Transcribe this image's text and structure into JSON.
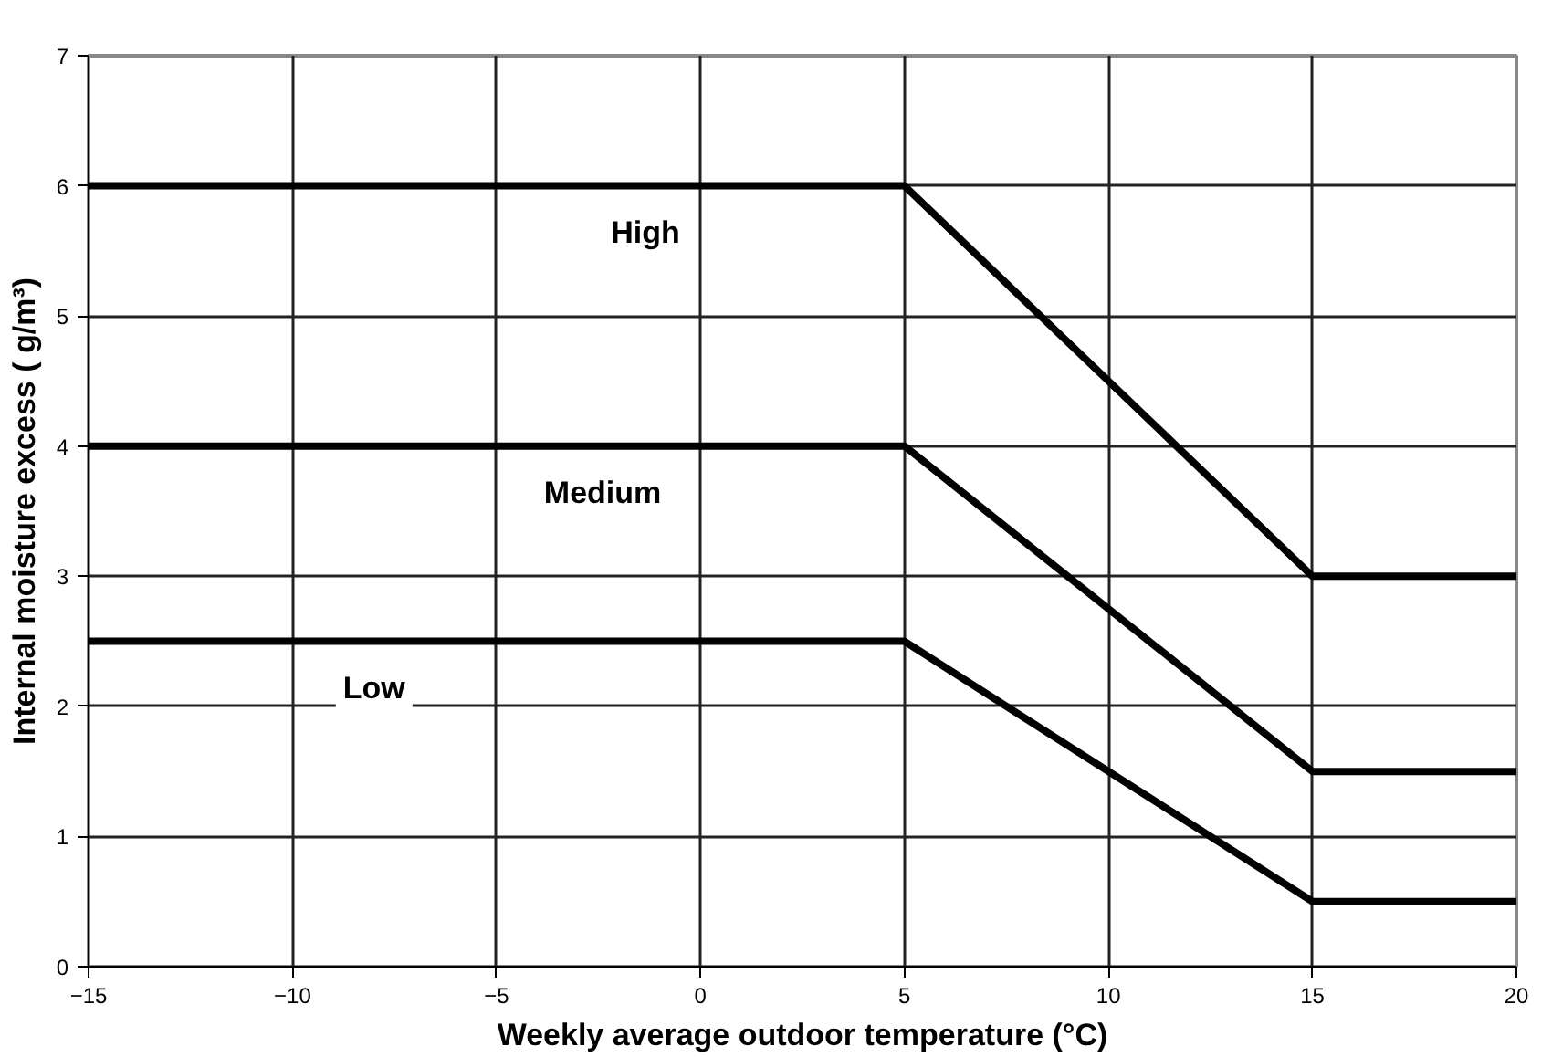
{
  "chart_data": {
    "type": "line",
    "xlabel": "Weekly average outdoor temperature (°C)",
    "ylabel": "Internal moisture excess ( g/m³)",
    "x": [
      -15,
      5,
      15,
      20
    ],
    "series": [
      {
        "name": "High",
        "color": "#000000",
        "values": [
          6,
          6,
          3,
          3
        ]
      },
      {
        "name": "Medium",
        "color": "#000000",
        "values": [
          4,
          4,
          1.5,
          1.5
        ]
      },
      {
        "name": "Low",
        "color": "#000000",
        "values": [
          2.5,
          2.5,
          0.5,
          0.5
        ]
      }
    ],
    "xlim": [
      -15,
      20
    ],
    "xticks": [
      -15,
      -10,
      -5,
      0,
      5,
      10,
      15,
      20
    ],
    "ylim": [
      0,
      7
    ],
    "yticks": [
      0,
      1,
      2,
      3,
      4,
      5,
      6,
      7
    ],
    "grid": true,
    "marker": "none",
    "line_style": "solid"
  }
}
